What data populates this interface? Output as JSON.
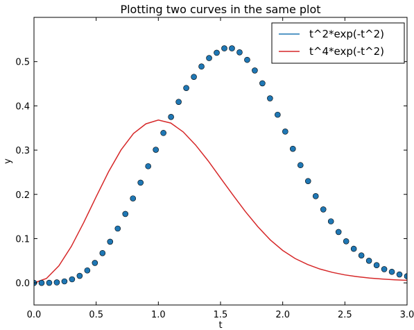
{
  "chart_data": {
    "type": "line",
    "title": "Plotting two curves in the same plot",
    "xlabel": "t",
    "ylabel": "y",
    "xlim": [
      0.0,
      3.0
    ],
    "ylim": [
      -0.05,
      0.6
    ],
    "x_ticks": [
      0.0,
      0.5,
      1.0,
      1.5,
      2.0,
      2.5,
      3.0
    ],
    "y_ticks": [
      0.0,
      0.1,
      0.2,
      0.3,
      0.4,
      0.5
    ],
    "x_tick_labels": [
      "0.0",
      "0.5",
      "1.0",
      "1.5",
      "2.0",
      "2.5",
      "3.0"
    ],
    "y_tick_labels": [
      "0.0",
      "0.1",
      "0.2",
      "0.3",
      "0.4",
      "0.5"
    ],
    "grid": false,
    "legend_position": "top-right",
    "series": [
      {
        "name": "t^2*exp(-t^2)",
        "style": "line",
        "color": "#d62728",
        "x": [
          0.0,
          0.1,
          0.2,
          0.3,
          0.4,
          0.5,
          0.6,
          0.7,
          0.8,
          0.9,
          1.0,
          1.1,
          1.2,
          1.3,
          1.4,
          1.5,
          1.6,
          1.7,
          1.8,
          1.9,
          2.0,
          2.1,
          2.2,
          2.3,
          2.4,
          2.5,
          2.6,
          2.7,
          2.8,
          2.9,
          3.0
        ],
        "values": [
          0.0,
          0.0099,
          0.0384,
          0.0822,
          0.1363,
          0.1947,
          0.2512,
          0.3004,
          0.3375,
          0.3594,
          0.3679,
          0.3612,
          0.3411,
          0.3114,
          0.276,
          0.2371,
          0.1985,
          0.1611,
          0.127,
          0.0971,
          0.0733,
          0.055,
          0.0415,
          0.0312,
          0.0237,
          0.018,
          0.0139,
          0.0109,
          0.0087,
          0.007,
          0.0057
        ]
      },
      {
        "name": "t^4*exp(-t^2)",
        "style": "markers",
        "color": "#1f77b4",
        "x": [
          0.0,
          0.0612,
          0.1224,
          0.1837,
          0.2449,
          0.3061,
          0.3673,
          0.4286,
          0.4898,
          0.551,
          0.6122,
          0.6735,
          0.7347,
          0.7959,
          0.8571,
          0.9184,
          0.9796,
          1.0408,
          1.102,
          1.1633,
          1.2245,
          1.2857,
          1.3469,
          1.4082,
          1.4694,
          1.5306,
          1.5918,
          1.6531,
          1.7143,
          1.7755,
          1.8367,
          1.898,
          1.9592,
          2.0204,
          2.0816,
          2.1429,
          2.2041,
          2.2653,
          2.3265,
          2.3878,
          2.449,
          2.5102,
          2.5714,
          2.6327,
          2.6939,
          2.7551,
          2.8163,
          2.8776,
          2.9388,
          3.0
        ],
        "values": [
          0.0,
          0.0,
          0.0002,
          0.0011,
          0.0034,
          0.0081,
          0.0159,
          0.0281,
          0.0451,
          0.0673,
          0.093,
          0.1227,
          0.1558,
          0.1908,
          0.2265,
          0.2636,
          0.3008,
          0.3388,
          0.375,
          0.409,
          0.4404,
          0.4655,
          0.489,
          0.508,
          0.52,
          0.53,
          0.53,
          0.521,
          0.504,
          0.48,
          0.451,
          0.417,
          0.38,
          0.342,
          0.303,
          0.266,
          0.23,
          0.196,
          0.166,
          0.139,
          0.115,
          0.094,
          0.077,
          0.062,
          0.05,
          0.04,
          0.031,
          0.025,
          0.019,
          0.015
        ]
      }
    ]
  }
}
